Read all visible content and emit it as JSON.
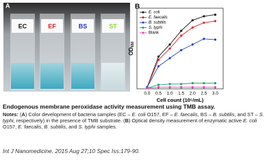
{
  "panel_a": {
    "label": "A",
    "tubes": [
      {
        "label": "EC",
        "color": "#111111"
      },
      {
        "label": "EF",
        "color": "#e0202a"
      },
      {
        "label": "BS",
        "color": "#2430c8"
      },
      {
        "label": "ST",
        "color": "#8fd63a"
      }
    ]
  },
  "panel_b": {
    "label": "B"
  },
  "chart_data": {
    "type": "line",
    "y_label": "OD",
    "y_label_sub": "650",
    "x_label": "Cell count (10⁵/mL)",
    "x": [
      0,
      0.5,
      1,
      1.5,
      2,
      2.5,
      3
    ],
    "xlim": [
      -0.45,
      3.35
    ],
    "xticks": [
      {
        "value": 0,
        "label": "0.0"
      },
      0.5,
      {
        "value": 1,
        "label": "1.0"
      },
      1.5,
      {
        "value": 2,
        "label": "2.0"
      },
      2.5,
      {
        "value": 3,
        "label": "3.0"
      }
    ],
    "ylim": [
      0,
      1
    ],
    "legend": "top-left",
    "series": [
      {
        "name": "E. coli",
        "color": "#111111",
        "values": [
          0.02,
          0.4,
          0.55,
          0.72,
          0.85,
          0.9,
          0.92
        ]
      },
      {
        "name": "E. faecalis",
        "color": "#e0202a",
        "values": [
          0.02,
          0.36,
          0.5,
          0.66,
          0.76,
          0.82,
          0.84
        ]
      },
      {
        "name": "B. subtilis",
        "color": "#2040c0",
        "values": [
          0.02,
          0.28,
          0.38,
          0.48,
          0.55,
          0.62,
          0.61
        ]
      },
      {
        "name": "S. typhi",
        "color": "#20a060",
        "values": [
          0.01,
          0.05,
          0.06,
          0.06,
          0.07,
          0.07,
          0.07
        ]
      },
      {
        "name": "Blank",
        "color": "#e040c0",
        "values": [
          0.01,
          0.02,
          0.02,
          0.02,
          0.02,
          0.02,
          0.02
        ]
      }
    ]
  },
  "caption": {
    "title": "Endogenous membrane peroxidase activity measurement using TMB assay.",
    "notes_label": "Notes:",
    "notes": [
      {
        "text": " ("
      },
      {
        "text": "A",
        "style": "b"
      },
      {
        "text": ") Color development of bacteria samples (EC – "
      },
      {
        "text": "E. coli",
        "style": "i"
      },
      {
        "text": " O157, EF – "
      },
      {
        "text": "E. faecalis",
        "style": "i"
      },
      {
        "text": ", BS – "
      },
      {
        "text": "B. subtilis",
        "style": "i"
      },
      {
        "text": ", and ST – "
      },
      {
        "text": "S. typhi",
        "style": "i"
      },
      {
        "text": ", respectively) in the presence of TMB substrate. ("
      },
      {
        "text": "B",
        "style": "b"
      },
      {
        "text": ") Optical density measurement of enzymatic active "
      },
      {
        "text": "E. coli",
        "style": "i"
      },
      {
        "text": " O157, "
      },
      {
        "text": "E. faecalis",
        "style": "i"
      },
      {
        "text": ", "
      },
      {
        "text": "B. subtilis",
        "style": "i"
      },
      {
        "text": ", and "
      },
      {
        "text": "S. typhi",
        "style": "i"
      },
      {
        "text": " samples."
      }
    ]
  },
  "citation": "Int J Nanomedicine. 2015 Aug 27;10 Spec Iss:179-90."
}
